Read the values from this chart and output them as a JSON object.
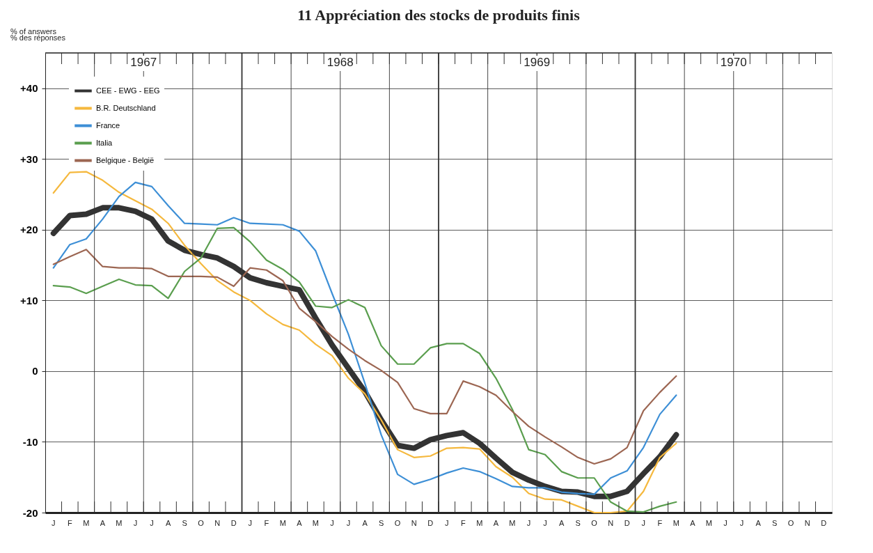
{
  "chart_data": {
    "type": "line",
    "title": "11 Appréciation des stocks de produits finis",
    "ylabel": "% of answers\n% des réponses",
    "categories": [
      "J",
      "F",
      "M",
      "A",
      "M",
      "J",
      "J",
      "A",
      "S",
      "O",
      "N",
      "D",
      "J",
      "F",
      "M",
      "A",
      "M",
      "J",
      "J",
      "A",
      "S",
      "O",
      "N",
      "D",
      "J",
      "F",
      "M",
      "A",
      "M",
      "J",
      "J",
      "A",
      "S",
      "O",
      "N",
      "D",
      "J",
      "F",
      "M",
      "A",
      "M",
      "J",
      "J",
      "A",
      "S",
      "O",
      "N",
      "D"
    ],
    "annotations": [
      "1967",
      "1968",
      "1969",
      "1970"
    ],
    "series": [
      {
        "name": "CEE - EWG - EEG",
        "color": "#333333",
        "values": [
          19.5,
          22.0,
          22.2,
          23.1,
          23.1,
          22.6,
          21.5,
          18.4,
          17.1,
          16.5,
          16.0,
          14.8,
          13.2,
          12.5,
          12.0,
          11.5,
          7.5,
          3.7,
          0.4,
          -2.9,
          -6.9,
          -10.5,
          -10.9,
          -9.7,
          -9.1,
          -8.7,
          -10.2,
          -12.3,
          -14.3,
          -15.4,
          -16.3,
          -17.0,
          -17.1,
          -17.7,
          -17.7,
          -17.0,
          -14.5,
          -12.1,
          -9.0,
          null,
          null,
          null,
          null,
          null,
          null,
          null,
          null,
          null
        ]
      },
      {
        "name": "B.R. Deutschland",
        "color": "#f5b83d",
        "values": [
          25.2,
          28.1,
          28.2,
          27.0,
          25.3,
          24.1,
          22.9,
          20.9,
          17.8,
          15.2,
          12.8,
          11.2,
          10.0,
          8.1,
          6.6,
          5.8,
          3.8,
          2.2,
          -1.0,
          -3.2,
          -6.9,
          -11.1,
          -12.2,
          -12.0,
          -10.9,
          -10.8,
          -11.0,
          -13.5,
          -15.0,
          -17.3,
          -18.1,
          -18.2,
          -19.1,
          -20.0,
          -20.0,
          -19.8,
          -17.0,
          -12.2,
          -10.2,
          null,
          null,
          null,
          null,
          null,
          null,
          null,
          null,
          null
        ]
      },
      {
        "name": "France",
        "color": "#3d8fd6",
        "values": [
          14.6,
          17.9,
          18.7,
          21.5,
          24.7,
          26.7,
          26.1,
          23.4,
          20.9,
          20.8,
          20.7,
          21.7,
          20.9,
          20.8,
          20.7,
          19.8,
          17.0,
          11.0,
          5.2,
          -1.7,
          -9.0,
          -14.6,
          -16.0,
          -15.3,
          -14.4,
          -13.7,
          -14.2,
          -15.2,
          -16.3,
          -16.5,
          -16.5,
          -17.1,
          -17.3,
          -17.4,
          -15.1,
          -14.1,
          -10.8,
          -6.1,
          -3.4,
          null,
          null,
          null,
          null,
          null,
          null,
          null,
          null,
          null
        ]
      },
      {
        "name": "Italia",
        "color": "#5a9e4e",
        "values": [
          12.1,
          11.9,
          11.0,
          12.0,
          13.0,
          12.2,
          12.1,
          10.3,
          14.1,
          16.0,
          20.2,
          20.3,
          18.3,
          15.7,
          14.4,
          12.6,
          9.2,
          9.0,
          10.1,
          9.0,
          3.6,
          1.0,
          1.0,
          3.3,
          3.9,
          3.9,
          2.5,
          -1.0,
          -5.4,
          -11.1,
          -11.8,
          -14.2,
          -15.1,
          -15.1,
          -18.5,
          -19.8,
          -19.9,
          -19.1,
          -18.5,
          null,
          null,
          null,
          null,
          null,
          null,
          null,
          null,
          null
        ]
      },
      {
        "name": "Belgique - België",
        "color": "#9c6652",
        "values": [
          15.1,
          16.2,
          17.2,
          14.8,
          14.6,
          14.6,
          14.5,
          13.4,
          13.4,
          13.4,
          13.3,
          12.0,
          14.6,
          14.3,
          12.8,
          8.9,
          7.0,
          4.9,
          3.1,
          1.5,
          0.1,
          -1.6,
          -5.3,
          -6.0,
          -6.0,
          -1.4,
          -2.2,
          -3.4,
          -5.7,
          -7.8,
          -9.3,
          -10.7,
          -12.2,
          -13.1,
          -12.4,
          -10.8,
          -5.6,
          -3.0,
          -0.7,
          null,
          null,
          null,
          null,
          null,
          null,
          null,
          null,
          null
        ]
      }
    ],
    "ylim": [
      -20,
      45
    ],
    "yticks": [
      {
        "value": -20,
        "label": "-20"
      },
      {
        "value": -10,
        "label": "-10"
      },
      0,
      {
        "value": 10,
        "label": "+10"
      },
      {
        "value": 20,
        "label": "+20"
      },
      {
        "value": 30,
        "label": "+30"
      },
      {
        "value": 40,
        "label": "+40"
      }
    ],
    "grid": true,
    "legend": "top left"
  }
}
